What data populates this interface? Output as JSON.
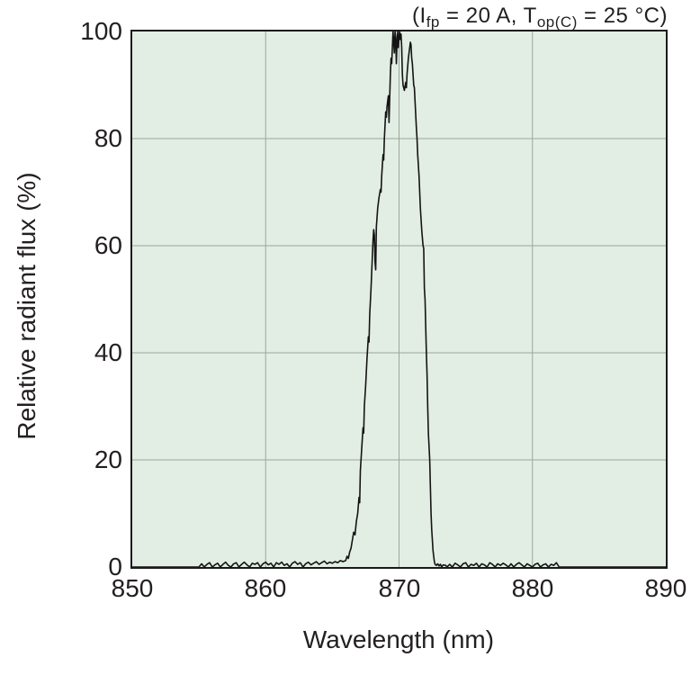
{
  "annotation": {
    "i_base": "(I",
    "i_sub": "fp",
    "mid": " = 20 A, T",
    "t_sub": "op(C)",
    "end": " = 25 °C)"
  },
  "chart_data": {
    "type": "line",
    "title": "(Ifp = 20 A, Top(C) = 25 °C)",
    "xlabel": "Wavelength (nm)",
    "ylabel": "Relative radiant flux (%)",
    "xlim": [
      850,
      890
    ],
    "ylim": [
      0,
      100
    ],
    "x_ticks": [
      850,
      860,
      870,
      880,
      890
    ],
    "y_ticks": [
      0,
      20,
      40,
      60,
      80,
      100
    ],
    "x_tick_labels": [
      "850",
      "860",
      "870",
      "880",
      "890"
    ],
    "y_tick_labels": [
      "0",
      "20",
      "40",
      "60",
      "80",
      "100"
    ],
    "grid": true,
    "legend": "none",
    "plot_bg_color": "#e2eee3",
    "grid_color": "#9aa69c",
    "line_color": "#141414",
    "frame_color": "#1a1a1a",
    "peak_wavelength_nm": 870,
    "series": [
      {
        "name": "relative-radiant-flux",
        "points": [
          [
            850,
            0
          ],
          [
            855,
            0
          ],
          [
            855.2,
            0.6
          ],
          [
            855.4,
            0
          ],
          [
            855.6,
            0.5
          ],
          [
            855.8,
            0.8
          ],
          [
            856,
            0
          ],
          [
            856.2,
            0.4
          ],
          [
            856.4,
            0.7
          ],
          [
            856.6,
            0
          ],
          [
            856.8,
            0.5
          ],
          [
            857,
            0.9
          ],
          [
            857.2,
            0.3
          ],
          [
            857.4,
            0
          ],
          [
            857.6,
            0.6
          ],
          [
            857.8,
            0.8
          ],
          [
            858,
            0
          ],
          [
            858.2,
            0.5
          ],
          [
            858.4,
            0.9
          ],
          [
            858.6,
            0.4
          ],
          [
            858.8,
            0
          ],
          [
            859,
            0.7
          ],
          [
            859.2,
            0.5
          ],
          [
            859.4,
            0.8
          ],
          [
            859.6,
            0
          ],
          [
            859.8,
            0.6
          ],
          [
            860,
            0.9
          ],
          [
            860.2,
            0.4
          ],
          [
            860.4,
            0.7
          ],
          [
            860.6,
            0
          ],
          [
            860.8,
            0.8
          ],
          [
            861,
            0.5
          ],
          [
            861.2,
            0.9
          ],
          [
            861.4,
            0.3
          ],
          [
            861.6,
            0.6
          ],
          [
            861.8,
            0
          ],
          [
            862,
            0.7
          ],
          [
            862.2,
            1
          ],
          [
            862.4,
            0.5
          ],
          [
            862.6,
            0.8
          ],
          [
            862.8,
            0
          ],
          [
            863,
            0.6
          ],
          [
            863.2,
            0.9
          ],
          [
            863.4,
            0.4
          ],
          [
            863.6,
            0.7
          ],
          [
            863.8,
            1
          ],
          [
            864,
            0.5
          ],
          [
            864.2,
            0.8
          ],
          [
            864.4,
            1.1
          ],
          [
            864.6,
            0.6
          ],
          [
            864.8,
            0.9
          ],
          [
            865,
            0.7
          ],
          [
            865.2,
            1
          ],
          [
            865.4,
            0.8
          ],
          [
            865.6,
            1.2
          ],
          [
            865.8,
            1
          ],
          [
            866,
            1.2
          ],
          [
            866.1,
            2
          ],
          [
            866.2,
            1.6
          ],
          [
            866.3,
            2.8
          ],
          [
            866.4,
            3.5
          ],
          [
            866.5,
            5
          ],
          [
            866.6,
            6.5
          ],
          [
            866.7,
            6
          ],
          [
            866.8,
            8.5
          ],
          [
            866.9,
            10
          ],
          [
            867,
            13
          ],
          [
            867.05,
            12
          ],
          [
            867.1,
            18
          ],
          [
            867.2,
            22
          ],
          [
            867.3,
            26
          ],
          [
            867.35,
            25
          ],
          [
            867.4,
            30
          ],
          [
            867.5,
            34
          ],
          [
            867.6,
            39
          ],
          [
            867.7,
            43
          ],
          [
            867.75,
            42
          ],
          [
            867.8,
            47
          ],
          [
            867.9,
            52
          ],
          [
            868,
            58
          ],
          [
            868.05,
            61
          ],
          [
            868.1,
            63
          ],
          [
            868.15,
            62
          ],
          [
            868.2,
            57
          ],
          [
            868.25,
            55.5
          ],
          [
            868.3,
            63.5
          ],
          [
            868.4,
            67
          ],
          [
            868.5,
            69
          ],
          [
            868.6,
            70.5
          ],
          [
            868.65,
            70
          ],
          [
            868.7,
            73
          ],
          [
            868.8,
            77
          ],
          [
            868.85,
            76
          ],
          [
            868.9,
            80
          ],
          [
            869,
            85
          ],
          [
            869.05,
            84
          ],
          [
            869.1,
            86
          ],
          [
            869.2,
            88
          ],
          [
            869.25,
            83
          ],
          [
            869.3,
            87.5
          ],
          [
            869.35,
            92
          ],
          [
            869.4,
            95
          ],
          [
            869.45,
            94
          ],
          [
            869.5,
            97
          ],
          [
            869.55,
            100
          ],
          [
            869.6,
            98
          ],
          [
            869.65,
            96
          ],
          [
            869.7,
            100
          ],
          [
            869.75,
            99
          ],
          [
            869.8,
            94
          ],
          [
            869.85,
            98
          ],
          [
            869.9,
            100
          ],
          [
            869.95,
            97
          ],
          [
            870,
            99
          ],
          [
            870.05,
            100
          ],
          [
            870.1,
            98.5
          ],
          [
            870.15,
            99.5
          ],
          [
            870.2,
            97
          ],
          [
            870.25,
            92
          ],
          [
            870.3,
            90
          ],
          [
            870.4,
            89
          ],
          [
            870.5,
            90.5
          ],
          [
            870.55,
            89.5
          ],
          [
            870.6,
            92
          ],
          [
            870.7,
            95
          ],
          [
            870.8,
            97
          ],
          [
            870.85,
            98
          ],
          [
            870.9,
            97.5
          ],
          [
            870.95,
            95
          ],
          [
            871,
            94
          ],
          [
            871.05,
            92
          ],
          [
            871.1,
            90
          ],
          [
            871.15,
            89.5
          ],
          [
            871.2,
            87
          ],
          [
            871.3,
            82
          ],
          [
            871.35,
            80
          ],
          [
            871.4,
            77
          ],
          [
            871.5,
            73
          ],
          [
            871.55,
            70
          ],
          [
            871.6,
            67
          ],
          [
            871.7,
            63
          ],
          [
            871.8,
            60
          ],
          [
            871.85,
            59.5
          ],
          [
            871.9,
            52
          ],
          [
            871.95,
            50
          ],
          [
            872,
            45
          ],
          [
            872.05,
            40
          ],
          [
            872.1,
            36
          ],
          [
            872.15,
            30
          ],
          [
            872.2,
            25
          ],
          [
            872.3,
            20
          ],
          [
            872.35,
            15
          ],
          [
            872.4,
            10
          ],
          [
            872.45,
            7
          ],
          [
            872.5,
            5
          ],
          [
            872.55,
            3
          ],
          [
            872.6,
            2
          ],
          [
            872.65,
            1
          ],
          [
            872.7,
            0.5
          ],
          [
            872.8,
            0.3
          ],
          [
            872.9,
            0.6
          ],
          [
            873,
            0.2
          ],
          [
            873.1,
            0.5
          ],
          [
            873.2,
            0
          ],
          [
            873.3,
            0.4
          ],
          [
            873.5,
            0.3
          ],
          [
            873.6,
            0
          ],
          [
            873.8,
            0.5
          ],
          [
            874,
            0
          ],
          [
            874.2,
            0.7
          ],
          [
            874.4,
            0.4
          ],
          [
            874.6,
            0
          ],
          [
            874.8,
            0.6
          ],
          [
            875,
            0.8
          ],
          [
            875.2,
            0
          ],
          [
            875.4,
            0.5
          ],
          [
            875.6,
            0.3
          ],
          [
            875.8,
            0.7
          ],
          [
            876,
            0
          ],
          [
            876.2,
            0.6
          ],
          [
            876.4,
            0.4
          ],
          [
            876.6,
            0
          ],
          [
            876.8,
            0.8
          ],
          [
            877,
            0.5
          ],
          [
            877.2,
            0
          ],
          [
            877.4,
            0.6
          ],
          [
            877.6,
            0.3
          ],
          [
            877.8,
            0.7
          ],
          [
            878,
            0.4
          ],
          [
            878.2,
            0
          ],
          [
            878.4,
            0.6
          ],
          [
            878.6,
            0
          ],
          [
            878.8,
            0.5
          ],
          [
            879,
            0.8
          ],
          [
            879.2,
            0.4
          ],
          [
            879.4,
            0
          ],
          [
            879.6,
            0.6
          ],
          [
            879.8,
            0.3
          ],
          [
            880,
            0
          ],
          [
            880.2,
            0.5
          ],
          [
            880.4,
            0.7
          ],
          [
            880.6,
            0
          ],
          [
            880.8,
            0.4
          ],
          [
            881,
            0.6
          ],
          [
            881.2,
            0
          ],
          [
            881.4,
            0.5
          ],
          [
            881.6,
            0.3
          ],
          [
            881.8,
            0.8
          ],
          [
            882,
            0
          ],
          [
            890,
            0
          ]
        ]
      }
    ]
  }
}
